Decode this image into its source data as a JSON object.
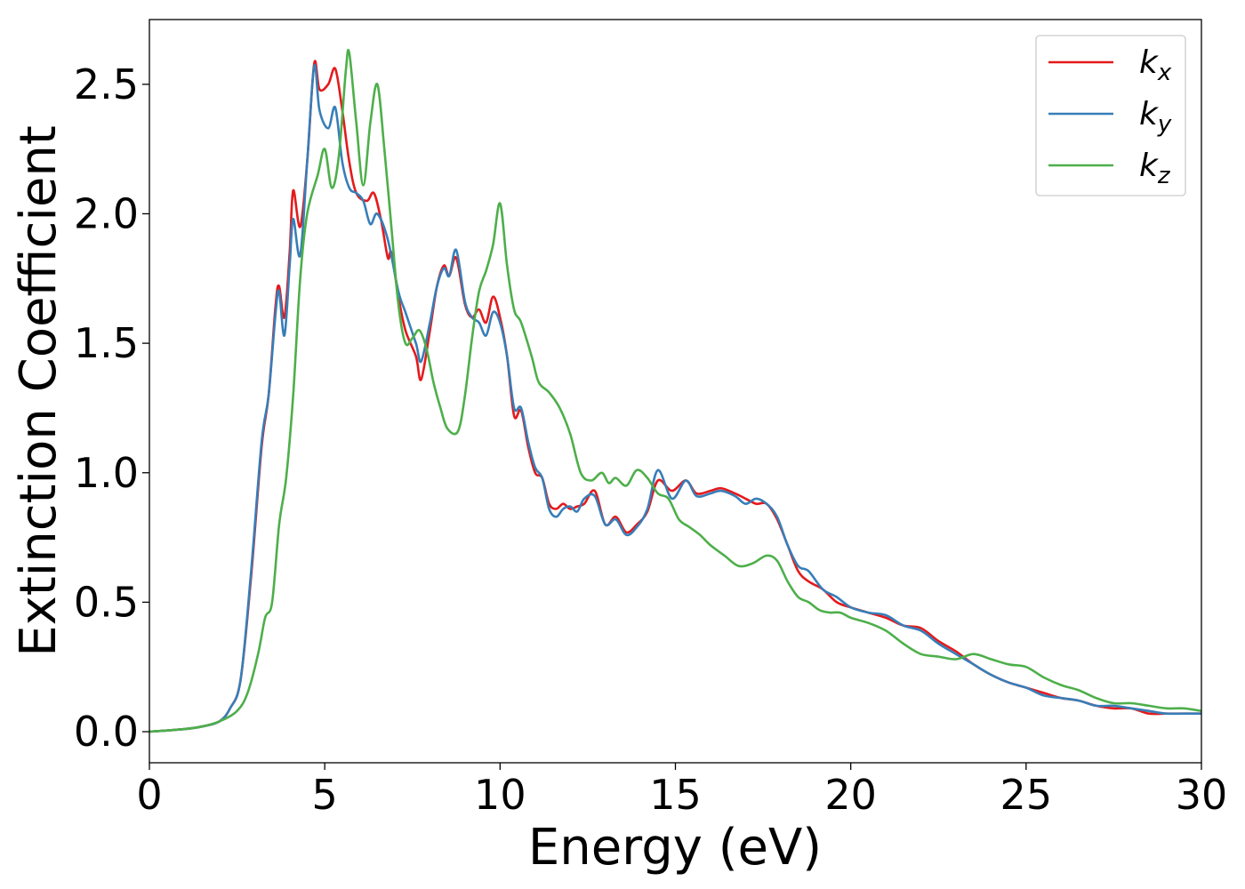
{
  "chart_data": {
    "type": "line",
    "xlabel": "Energy (eV)",
    "ylabel": "Extinction Coefficient",
    "xlim": [
      0,
      30
    ],
    "ylim": [
      -0.12,
      2.75
    ],
    "xticks": [
      0,
      5,
      10,
      15,
      20,
      25,
      30
    ],
    "xtick_labels": [
      "0",
      "5",
      "10",
      "15",
      "20",
      "25",
      "30"
    ],
    "yticks": [
      0.0,
      0.5,
      1.0,
      1.5,
      2.0,
      2.5
    ],
    "ytick_labels": [
      "0.0",
      "0.5",
      "1.0",
      "1.5",
      "2.0",
      "2.5"
    ],
    "grid": false,
    "legend_position": "top-right",
    "series": [
      {
        "name": "k",
        "subscript": "x",
        "color": "#e41a1c",
        "points": [
          [
            0,
            0
          ],
          [
            1,
            0.01
          ],
          [
            1.5,
            0.02
          ],
          [
            2,
            0.04
          ],
          [
            2.3,
            0.09
          ],
          [
            2.6,
            0.2
          ],
          [
            2.9,
            0.6
          ],
          [
            3.2,
            1.1
          ],
          [
            3.4,
            1.3
          ],
          [
            3.6,
            1.65
          ],
          [
            3.7,
            1.72
          ],
          [
            3.85,
            1.6
          ],
          [
            4.0,
            1.85
          ],
          [
            4.1,
            2.09
          ],
          [
            4.3,
            1.95
          ],
          [
            4.5,
            2.2
          ],
          [
            4.7,
            2.58
          ],
          [
            4.85,
            2.48
          ],
          [
            5.1,
            2.5
          ],
          [
            5.3,
            2.56
          ],
          [
            5.5,
            2.4
          ],
          [
            5.7,
            2.2
          ],
          [
            5.9,
            2.08
          ],
          [
            6.2,
            2.05
          ],
          [
            6.4,
            2.08
          ],
          [
            6.6,
            1.98
          ],
          [
            6.8,
            1.83
          ],
          [
            6.9,
            1.85
          ],
          [
            7.1,
            1.68
          ],
          [
            7.3,
            1.55
          ],
          [
            7.6,
            1.45
          ],
          [
            7.75,
            1.36
          ],
          [
            8.0,
            1.55
          ],
          [
            8.2,
            1.72
          ],
          [
            8.4,
            1.8
          ],
          [
            8.55,
            1.76
          ],
          [
            8.75,
            1.83
          ],
          [
            9.0,
            1.65
          ],
          [
            9.2,
            1.6
          ],
          [
            9.4,
            1.63
          ],
          [
            9.6,
            1.58
          ],
          [
            9.8,
            1.68
          ],
          [
            10.0,
            1.6
          ],
          [
            10.2,
            1.45
          ],
          [
            10.4,
            1.22
          ],
          [
            10.6,
            1.24
          ],
          [
            10.8,
            1.1
          ],
          [
            11.0,
            1.0
          ],
          [
            11.2,
            0.98
          ],
          [
            11.4,
            0.88
          ],
          [
            11.6,
            0.86
          ],
          [
            11.8,
            0.88
          ],
          [
            12.0,
            0.86
          ],
          [
            12.2,
            0.87
          ],
          [
            12.4,
            0.88
          ],
          [
            12.7,
            0.93
          ],
          [
            13.0,
            0.8
          ],
          [
            13.3,
            0.83
          ],
          [
            13.6,
            0.77
          ],
          [
            13.9,
            0.8
          ],
          [
            14.2,
            0.85
          ],
          [
            14.5,
            0.97
          ],
          [
            14.9,
            0.93
          ],
          [
            15.3,
            0.97
          ],
          [
            15.6,
            0.92
          ],
          [
            16.0,
            0.93
          ],
          [
            16.3,
            0.94
          ],
          [
            16.7,
            0.92
          ],
          [
            17.0,
            0.9
          ],
          [
            17.3,
            0.88
          ],
          [
            17.6,
            0.88
          ],
          [
            17.9,
            0.82
          ],
          [
            18.2,
            0.72
          ],
          [
            18.5,
            0.62
          ],
          [
            18.8,
            0.58
          ],
          [
            19.2,
            0.55
          ],
          [
            19.6,
            0.5
          ],
          [
            20.0,
            0.48
          ],
          [
            20.5,
            0.46
          ],
          [
            21.0,
            0.44
          ],
          [
            21.5,
            0.41
          ],
          [
            22.0,
            0.4
          ],
          [
            22.5,
            0.35
          ],
          [
            23.0,
            0.31
          ],
          [
            23.5,
            0.26
          ],
          [
            24.0,
            0.22
          ],
          [
            24.5,
            0.19
          ],
          [
            25.0,
            0.17
          ],
          [
            25.5,
            0.15
          ],
          [
            26.0,
            0.13
          ],
          [
            26.5,
            0.12
          ],
          [
            27.0,
            0.1
          ],
          [
            27.5,
            0.09
          ],
          [
            28.0,
            0.09
          ],
          [
            28.5,
            0.07
          ],
          [
            29.0,
            0.07
          ],
          [
            29.5,
            0.07
          ],
          [
            30.0,
            0.07
          ]
        ]
      },
      {
        "name": "k",
        "subscript": "y",
        "color": "#377eb8",
        "points": [
          [
            0,
            0
          ],
          [
            1,
            0.01
          ],
          [
            1.5,
            0.02
          ],
          [
            2,
            0.04
          ],
          [
            2.3,
            0.09
          ],
          [
            2.6,
            0.2
          ],
          [
            2.9,
            0.62
          ],
          [
            3.2,
            1.12
          ],
          [
            3.4,
            1.3
          ],
          [
            3.6,
            1.62
          ],
          [
            3.7,
            1.7
          ],
          [
            3.85,
            1.53
          ],
          [
            4.0,
            1.8
          ],
          [
            4.1,
            1.98
          ],
          [
            4.3,
            1.84
          ],
          [
            4.5,
            2.2
          ],
          [
            4.7,
            2.57
          ],
          [
            4.85,
            2.4
          ],
          [
            5.1,
            2.33
          ],
          [
            5.3,
            2.41
          ],
          [
            5.5,
            2.2
          ],
          [
            5.7,
            2.1
          ],
          [
            5.9,
            2.08
          ],
          [
            6.1,
            2.05
          ],
          [
            6.3,
            1.96
          ],
          [
            6.5,
            2.0
          ],
          [
            6.8,
            1.9
          ],
          [
            7.1,
            1.7
          ],
          [
            7.3,
            1.62
          ],
          [
            7.6,
            1.5
          ],
          [
            7.75,
            1.43
          ],
          [
            8.0,
            1.58
          ],
          [
            8.2,
            1.72
          ],
          [
            8.4,
            1.79
          ],
          [
            8.55,
            1.76
          ],
          [
            8.75,
            1.86
          ],
          [
            9.0,
            1.66
          ],
          [
            9.2,
            1.6
          ],
          [
            9.4,
            1.58
          ],
          [
            9.6,
            1.53
          ],
          [
            9.8,
            1.62
          ],
          [
            10.0,
            1.58
          ],
          [
            10.2,
            1.45
          ],
          [
            10.4,
            1.25
          ],
          [
            10.6,
            1.25
          ],
          [
            10.8,
            1.12
          ],
          [
            11.0,
            1.02
          ],
          [
            11.2,
            0.98
          ],
          [
            11.4,
            0.86
          ],
          [
            11.6,
            0.83
          ],
          [
            11.8,
            0.86
          ],
          [
            12.0,
            0.87
          ],
          [
            12.2,
            0.85
          ],
          [
            12.4,
            0.9
          ],
          [
            12.7,
            0.91
          ],
          [
            13.0,
            0.8
          ],
          [
            13.3,
            0.82
          ],
          [
            13.6,
            0.76
          ],
          [
            13.9,
            0.79
          ],
          [
            14.2,
            0.86
          ],
          [
            14.5,
            1.01
          ],
          [
            14.9,
            0.9
          ],
          [
            15.3,
            0.97
          ],
          [
            15.6,
            0.91
          ],
          [
            16.0,
            0.92
          ],
          [
            16.3,
            0.93
          ],
          [
            16.7,
            0.91
          ],
          [
            17.0,
            0.88
          ],
          [
            17.3,
            0.9
          ],
          [
            17.6,
            0.88
          ],
          [
            17.9,
            0.83
          ],
          [
            18.2,
            0.72
          ],
          [
            18.5,
            0.64
          ],
          [
            18.8,
            0.62
          ],
          [
            19.2,
            0.55
          ],
          [
            19.6,
            0.52
          ],
          [
            20.0,
            0.48
          ],
          [
            20.5,
            0.46
          ],
          [
            21.0,
            0.45
          ],
          [
            21.5,
            0.41
          ],
          [
            22.0,
            0.39
          ],
          [
            22.5,
            0.34
          ],
          [
            23.0,
            0.3
          ],
          [
            23.5,
            0.26
          ],
          [
            24.0,
            0.22
          ],
          [
            24.5,
            0.19
          ],
          [
            25.0,
            0.17
          ],
          [
            25.5,
            0.14
          ],
          [
            26.0,
            0.13
          ],
          [
            26.5,
            0.12
          ],
          [
            27.0,
            0.1
          ],
          [
            27.5,
            0.1
          ],
          [
            28.0,
            0.09
          ],
          [
            28.5,
            0.08
          ],
          [
            29.0,
            0.07
          ],
          [
            29.5,
            0.07
          ],
          [
            30.0,
            0.07
          ]
        ]
      },
      {
        "name": "k",
        "subscript": "z",
        "color": "#4daf4a",
        "points": [
          [
            0,
            0
          ],
          [
            1,
            0.01
          ],
          [
            1.5,
            0.02
          ],
          [
            2,
            0.04
          ],
          [
            2.5,
            0.08
          ],
          [
            2.8,
            0.15
          ],
          [
            3.1,
            0.3
          ],
          [
            3.3,
            0.44
          ],
          [
            3.5,
            0.5
          ],
          [
            3.7,
            0.8
          ],
          [
            3.9,
            0.98
          ],
          [
            4.1,
            1.3
          ],
          [
            4.3,
            1.75
          ],
          [
            4.5,
            2.0
          ],
          [
            4.8,
            2.15
          ],
          [
            5.0,
            2.25
          ],
          [
            5.2,
            2.1
          ],
          [
            5.4,
            2.22
          ],
          [
            5.6,
            2.55
          ],
          [
            5.7,
            2.62
          ],
          [
            5.9,
            2.35
          ],
          [
            6.1,
            2.11
          ],
          [
            6.3,
            2.35
          ],
          [
            6.5,
            2.5
          ],
          [
            6.7,
            2.25
          ],
          [
            6.9,
            1.95
          ],
          [
            7.1,
            1.65
          ],
          [
            7.3,
            1.5
          ],
          [
            7.5,
            1.52
          ],
          [
            7.7,
            1.55
          ],
          [
            7.9,
            1.48
          ],
          [
            8.1,
            1.35
          ],
          [
            8.3,
            1.25
          ],
          [
            8.5,
            1.17
          ],
          [
            8.8,
            1.16
          ],
          [
            9.0,
            1.3
          ],
          [
            9.2,
            1.52
          ],
          [
            9.4,
            1.7
          ],
          [
            9.6,
            1.78
          ],
          [
            9.8,
            1.88
          ],
          [
            10.0,
            2.04
          ],
          [
            10.2,
            1.8
          ],
          [
            10.4,
            1.63
          ],
          [
            10.6,
            1.58
          ],
          [
            10.9,
            1.45
          ],
          [
            11.1,
            1.35
          ],
          [
            11.4,
            1.31
          ],
          [
            11.7,
            1.25
          ],
          [
            12.0,
            1.15
          ],
          [
            12.3,
            1.0
          ],
          [
            12.6,
            0.97
          ],
          [
            12.9,
            1.0
          ],
          [
            13.1,
            0.96
          ],
          [
            13.3,
            0.98
          ],
          [
            13.6,
            0.95
          ],
          [
            13.9,
            1.01
          ],
          [
            14.2,
            0.98
          ],
          [
            14.5,
            0.92
          ],
          [
            14.8,
            0.9
          ],
          [
            15.1,
            0.82
          ],
          [
            15.4,
            0.79
          ],
          [
            15.7,
            0.76
          ],
          [
            16.0,
            0.72
          ],
          [
            16.4,
            0.68
          ],
          [
            16.8,
            0.64
          ],
          [
            17.2,
            0.65
          ],
          [
            17.6,
            0.68
          ],
          [
            17.9,
            0.66
          ],
          [
            18.2,
            0.58
          ],
          [
            18.5,
            0.52
          ],
          [
            18.8,
            0.5
          ],
          [
            19.1,
            0.47
          ],
          [
            19.4,
            0.46
          ],
          [
            19.7,
            0.46
          ],
          [
            20.0,
            0.44
          ],
          [
            20.5,
            0.42
          ],
          [
            21.0,
            0.39
          ],
          [
            21.5,
            0.34
          ],
          [
            22.0,
            0.3
          ],
          [
            22.5,
            0.29
          ],
          [
            23.0,
            0.28
          ],
          [
            23.5,
            0.3
          ],
          [
            24.0,
            0.28
          ],
          [
            24.5,
            0.26
          ],
          [
            25.0,
            0.25
          ],
          [
            25.5,
            0.21
          ],
          [
            26.0,
            0.18
          ],
          [
            26.5,
            0.16
          ],
          [
            27.0,
            0.13
          ],
          [
            27.5,
            0.11
          ],
          [
            28.0,
            0.11
          ],
          [
            28.5,
            0.1
          ],
          [
            29.0,
            0.09
          ],
          [
            29.5,
            0.09
          ],
          [
            30.0,
            0.08
          ]
        ]
      }
    ]
  }
}
